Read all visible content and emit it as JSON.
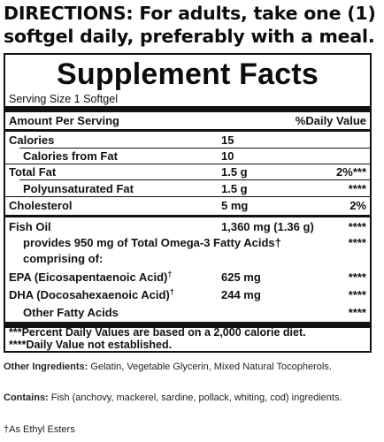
{
  "directions": {
    "line1": "DIRECTIONS: For adults, take one (1)",
    "line2": "softgel daily, preferably with a meal."
  },
  "facts": {
    "title": "Supplement Facts",
    "serving_size": "Serving Size 1 Softgel",
    "header_amount": "Amount Per Serving",
    "header_dv": "%Daily Value",
    "rows": {
      "calories": {
        "name": "Calories",
        "amount": "15",
        "dv": ""
      },
      "calories_fat": {
        "name": "Calories from Fat",
        "amount": "10",
        "dv": ""
      },
      "total_fat": {
        "name": "Total Fat",
        "amount": "1.5 g",
        "dv": "2%***"
      },
      "poly_fat": {
        "name": "Polyunsaturated Fat",
        "amount": "1.5 g",
        "dv": "****"
      },
      "cholesterol": {
        "name": "Cholesterol",
        "amount": "5 mg",
        "dv": "2%"
      },
      "fish_oil": {
        "name": "Fish Oil",
        "amount": "1,360 mg (1.36 g)",
        "dv": "****"
      },
      "omega3": {
        "name": "provides 950 mg of Total Omega-3 Fatty Acids",
        "dagger": "†",
        "dv": "****"
      },
      "comprising": {
        "name": "comprising of:"
      },
      "epa": {
        "name": "EPA (Eicosapentaenoic Acid)",
        "dagger": "†",
        "amount": "625 mg",
        "dv": "****"
      },
      "dha": {
        "name": "DHA (Docosahexaenoic Acid)",
        "dagger": "†",
        "amount": "244 mg",
        "dv": "****"
      },
      "other": {
        "name": "Other Fatty Acids",
        "dv": "****"
      }
    },
    "footnote1": "***Percent Daily Values are based on a 2,000 calorie diet.",
    "footnote2": "****Daily Value not established."
  },
  "below": {
    "other_ingredients_label": "Other Ingredients:",
    "other_ingredients_text": " Gelatin, Vegetable Glycerin, Mixed Natural Tocopherols.",
    "contains_label": "Contains:",
    "contains_text": " Fish (anchovy, mackerel, sardine, pollack, whiting, cod) ingredients.",
    "ethyl_note": "†As Ethyl Esters"
  }
}
